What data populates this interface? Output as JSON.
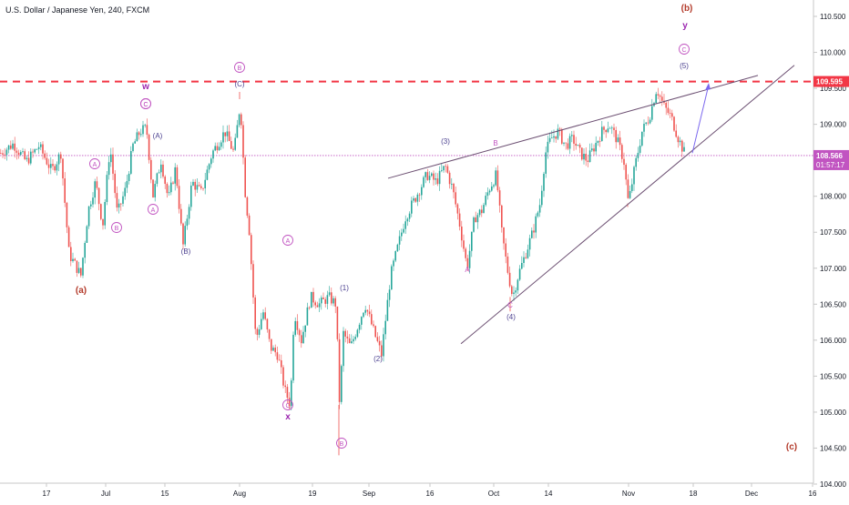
{
  "header": {
    "title": "U.S. Dollar / Japanese Yen, 240, FXCM"
  },
  "chart_data": {
    "type": "candlestick",
    "symbol": "USDJPY",
    "timeframe": "240",
    "source": "FXCM",
    "x_ticks": [
      "17",
      "Jul",
      "15",
      "Aug",
      "19",
      "Sep",
      "16",
      "Oct",
      "14",
      "Nov",
      "18",
      "Dec",
      "16"
    ],
    "y_ticks": [
      104.0,
      104.5,
      105.0,
      105.5,
      106.0,
      106.5,
      107.0,
      107.5,
      108.0,
      108.5,
      109.0,
      109.5,
      110.0,
      110.5
    ],
    "y_tick_labels": [
      "104.000",
      "104.500",
      "105.000",
      "105.500",
      "106.000",
      "106.500",
      "107.000",
      "107.500",
      "108.000",
      "108.500",
      "109.000",
      "109.500",
      "110.000",
      "110.500"
    ],
    "ylim": [
      103.93,
      110.75
    ],
    "current_price": {
      "value": 108.566,
      "label": "108.566",
      "countdown": "01:57:17",
      "color": "#c154c1"
    },
    "resistance_line": {
      "value": 109.595,
      "label": "109.595",
      "color": "#f23645",
      "style": "dashed"
    },
    "price_path": [
      [
        0,
        108.6
      ],
      [
        14,
        108.73
      ],
      [
        28,
        108.48
      ],
      [
        42,
        108.7
      ],
      [
        56,
        108.35
      ],
      [
        66,
        108.6
      ],
      [
        75,
        107.2
      ],
      [
        88,
        106.9
      ],
      [
        96,
        107.8
      ],
      [
        104,
        108.2
      ],
      [
        112,
        107.6
      ],
      [
        120,
        108.7
      ],
      [
        128,
        107.75
      ],
      [
        137,
        108.1
      ],
      [
        145,
        108.7
      ],
      [
        153,
        108.9
      ],
      [
        160,
        108.95
      ],
      [
        167,
        108.0
      ],
      [
        176,
        108.5
      ],
      [
        184,
        107.95
      ],
      [
        192,
        108.4
      ],
      [
        200,
        107.3
      ],
      [
        210,
        108.2
      ],
      [
        220,
        108.05
      ],
      [
        232,
        108.6
      ],
      [
        246,
        108.9
      ],
      [
        256,
        108.6
      ],
      [
        263,
        109.3
      ],
      [
        268,
        108.1
      ],
      [
        273,
        107.5
      ],
      [
        280,
        106.0
      ],
      [
        288,
        106.4
      ],
      [
        296,
        105.9
      ],
      [
        304,
        105.8
      ],
      [
        312,
        105.3
      ],
      [
        318,
        105.1
      ],
      [
        322,
        106.4
      ],
      [
        330,
        106.0
      ],
      [
        340,
        106.6
      ],
      [
        350,
        106.5
      ],
      [
        360,
        106.6
      ],
      [
        368,
        106.5
      ],
      [
        372,
        105.1
      ],
      [
        376,
        106.1
      ],
      [
        384,
        105.9
      ],
      [
        392,
        106.2
      ],
      [
        400,
        106.5
      ],
      [
        410,
        106.1
      ],
      [
        418,
        105.8
      ],
      [
        428,
        106.9
      ],
      [
        436,
        107.3
      ],
      [
        444,
        107.7
      ],
      [
        452,
        107.9
      ],
      [
        460,
        108.1
      ],
      [
        468,
        108.3
      ],
      [
        478,
        108.2
      ],
      [
        488,
        108.42
      ],
      [
        496,
        108.1
      ],
      [
        504,
        107.6
      ],
      [
        512,
        107.0
      ],
      [
        520,
        107.7
      ],
      [
        528,
        107.8
      ],
      [
        536,
        108.1
      ],
      [
        544,
        108.3
      ],
      [
        550,
        107.5
      ],
      [
        556,
        107.0
      ],
      [
        562,
        106.6
      ],
      [
        568,
        106.9
      ],
      [
        576,
        107.2
      ],
      [
        584,
        107.5
      ],
      [
        592,
        107.9
      ],
      [
        598,
        108.6
      ],
      [
        604,
        108.8
      ],
      [
        612,
        108.9
      ],
      [
        620,
        108.7
      ],
      [
        628,
        108.8
      ],
      [
        636,
        108.6
      ],
      [
        644,
        108.5
      ],
      [
        652,
        108.7
      ],
      [
        660,
        108.9
      ],
      [
        668,
        109.0
      ],
      [
        676,
        108.8
      ],
      [
        684,
        108.5
      ],
      [
        689,
        107.9
      ],
      [
        696,
        108.4
      ],
      [
        704,
        108.9
      ],
      [
        712,
        109.1
      ],
      [
        720,
        109.5
      ],
      [
        728,
        109.25
      ],
      [
        736,
        109.1
      ],
      [
        744,
        108.8
      ],
      [
        752,
        108.56
      ]
    ],
    "pattern_lines": [
      {
        "name": "triangle-upper-line",
        "from": [
          "Sep",
          108.2
        ],
        "to": [
          "Dec",
          109.7
        ]
      },
      {
        "name": "triangle-lower-line",
        "from": [
          "Sep",
          105.95
        ],
        "to": [
          "Dec",
          109.8
        ]
      }
    ],
    "projection_arrow": {
      "from_price": 108.6,
      "to_price": 109.55
    },
    "annotations": [
      {
        "text": "(a)",
        "color": "#b33a2a",
        "bold": true
      },
      {
        "text": "(b)",
        "color": "#b33a2a",
        "bold": true
      },
      {
        "text": "(c)",
        "color": "#b33a2a",
        "bold": true
      },
      {
        "text": "w",
        "color": "#9c27b0",
        "bold": true
      },
      {
        "text": "x",
        "color": "#9c27b0",
        "bold": true
      },
      {
        "text": "y",
        "color": "#9c27b0",
        "bold": true
      },
      {
        "text": "A",
        "color": "#c154c1",
        "circled": true
      },
      {
        "text": "B",
        "color": "#c154c1",
        "circled": true
      },
      {
        "text": "C",
        "color": "#c154c1",
        "circled": true
      },
      {
        "text": "(A)",
        "color": "#4a3f8f"
      },
      {
        "text": "(B)",
        "color": "#4a3f8f"
      },
      {
        "text": "(C)",
        "color": "#4a3f8f"
      },
      {
        "text": "(1)",
        "color": "#4a3f8f"
      },
      {
        "text": "(2)",
        "color": "#4a3f8f"
      },
      {
        "text": "(3)",
        "color": "#4a3f8f"
      },
      {
        "text": "(4)",
        "color": "#4a3f8f"
      },
      {
        "text": "(5)",
        "color": "#4a3f8f"
      },
      {
        "text": "A",
        "color": "#c154c1"
      },
      {
        "text": "B",
        "color": "#c154c1"
      },
      {
        "text": "C",
        "color": "#c154c1"
      }
    ],
    "colors": {
      "up": "#26a69a",
      "down": "#ef5350",
      "wick": "#7a7a7a",
      "grid": "none",
      "axis_text": "#131722"
    }
  }
}
